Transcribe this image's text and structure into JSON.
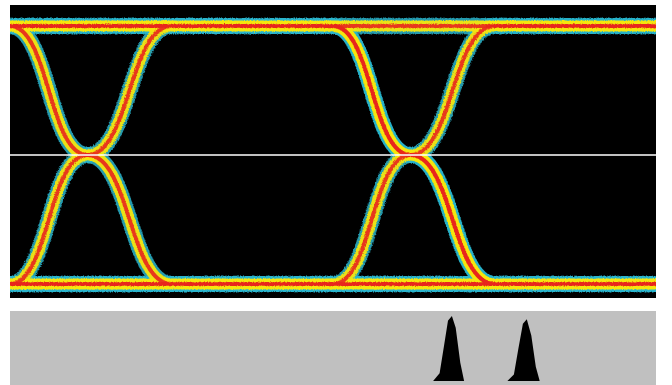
{
  "chart_data": [
    {
      "type": "line",
      "ylim": [
        0,
        1
      ],
      "x": [
        0,
        0.12,
        0.25,
        0.38,
        0.5,
        0.62,
        0.75,
        0.88,
        1.0
      ],
      "xlim": [
        0,
        1
      ],
      "grid": false,
      "legend": "none",
      "series": [
        {
          "values": [
            1,
            1,
            1,
            1,
            1,
            1,
            1,
            1,
            1
          ]
        },
        {
          "values": [
            0,
            0,
            0,
            0,
            0,
            0,
            0,
            0,
            0
          ]
        },
        {
          "values": [
            1,
            0.5,
            0,
            0,
            0,
            0,
            0,
            0,
            0
          ]
        },
        {
          "values": [
            0,
            0.5,
            1,
            1,
            1,
            0.5,
            0,
            0,
            0
          ]
        },
        {
          "values": [
            0,
            0,
            0,
            0,
            0,
            0,
            0,
            0,
            0
          ]
        },
        {
          "values": [
            1,
            1,
            1,
            1,
            1,
            0.5,
            0,
            0,
            0
          ]
        },
        {
          "values": [
            0,
            0,
            0,
            0,
            0,
            0.5,
            1,
            1,
            1
          ]
        }
      ],
      "crossings_x": [
        0.156,
        0.719
      ],
      "threshold_y": 0.5,
      "colors": {
        "background": "#000000",
        "outer": "#29b5cc",
        "mid": "#f5e60a",
        "core": "#e8261e",
        "threshold": "#ffffff"
      }
    },
    {
      "type": "area",
      "x": [
        0.655,
        0.665,
        0.672,
        0.678,
        0.684,
        0.69,
        0.697,
        0.703,
        0.77,
        0.78,
        0.787,
        0.794,
        0.8,
        0.807,
        0.814,
        0.82
      ],
      "values": [
        0,
        0.12,
        0.55,
        0.93,
        1.0,
        0.82,
        0.28,
        0,
        0,
        0.1,
        0.5,
        0.88,
        0.95,
        0.7,
        0.22,
        0
      ],
      "xlim": [
        0,
        1
      ],
      "ylim": [
        0,
        1
      ],
      "colors": {
        "background": "#c0c0c0",
        "fill": "#000000"
      }
    }
  ]
}
